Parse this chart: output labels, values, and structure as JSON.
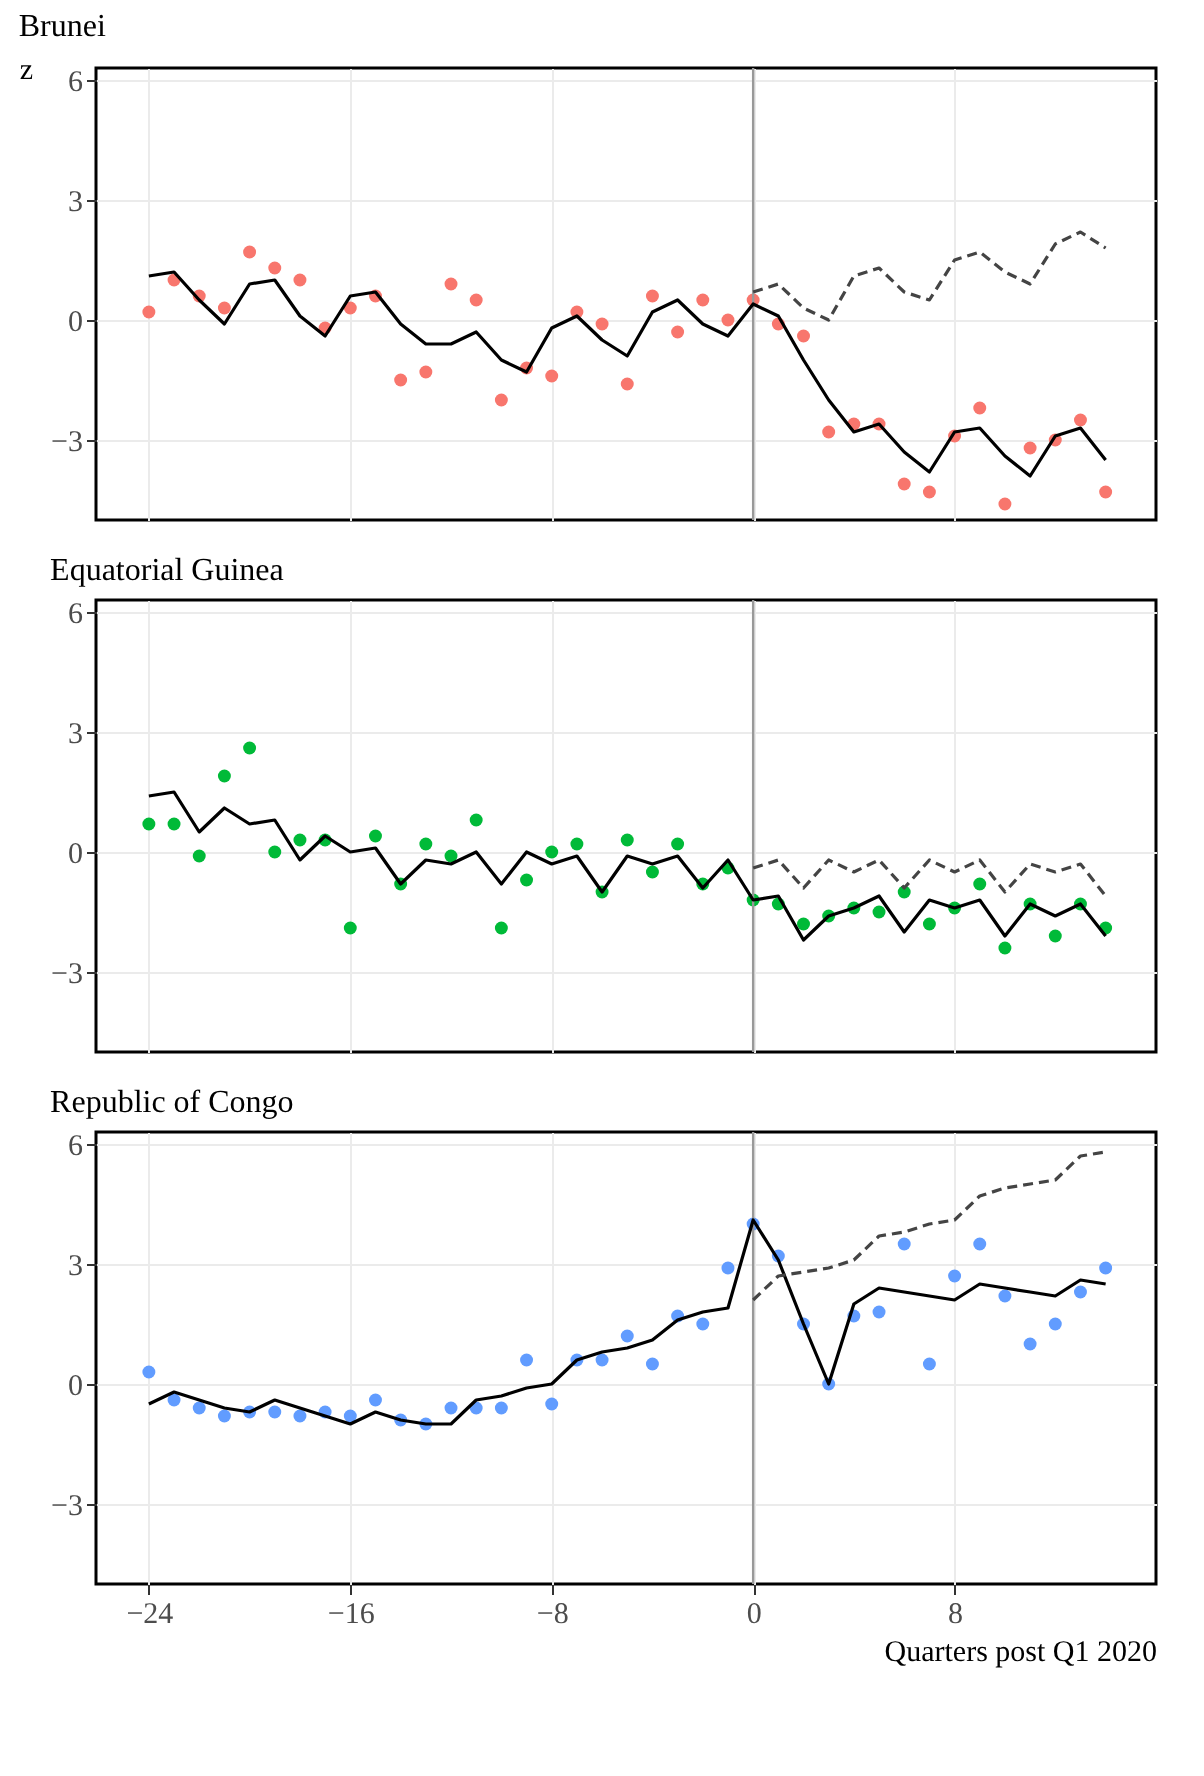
{
  "chart_data": [
    {
      "type": "scatter",
      "title": "Brunei",
      "ylabel": "z",
      "tick_labels": "y",
      "grid": true,
      "x": [
        -24,
        -23,
        -22,
        -21,
        -20,
        -19,
        -18,
        -17,
        -16,
        -15,
        -14,
        -13,
        -12,
        -11,
        -10,
        -9,
        -8,
        -7,
        -6,
        -5,
        -4,
        -3,
        -2,
        -1,
        0,
        1,
        2,
        3,
        4,
        5,
        6,
        7,
        8,
        9,
        10,
        11,
        12,
        13,
        14
      ],
      "xlim": [
        -26.1,
        16.0
      ],
      "xticks": [
        -24,
        -16,
        -8,
        0,
        8
      ],
      "ylim": [
        -5.0,
        6.3
      ],
      "yticks": [
        -3,
        0,
        3,
        6
      ],
      "ref_lines": [
        {
          "axis": "x",
          "value": 0,
          "color": "#999999"
        }
      ],
      "series": [
        {
          "color": "#f8766d",
          "marker": "circle",
          "values": [
            0.2,
            1.0,
            0.6,
            0.3,
            1.7,
            1.3,
            1.0,
            -0.2,
            0.3,
            0.6,
            -1.5,
            -1.3,
            0.9,
            0.5,
            -2.0,
            -1.2,
            -1.4,
            0.2,
            -0.1,
            -1.6,
            0.6,
            -0.3,
            0.5,
            0.0,
            0.5,
            -0.1,
            -0.4,
            -2.8,
            -2.6,
            -2.6,
            -4.1,
            -4.3,
            -2.9,
            -2.2,
            -4.6,
            -3.2,
            -3.0,
            -2.5,
            -4.3
          ]
        },
        {
          "type": "line",
          "color": "#000000",
          "line_style": "solid",
          "values": [
            1.1,
            1.2,
            0.5,
            -0.1,
            0.9,
            1.0,
            0.1,
            -0.4,
            0.6,
            0.7,
            -0.1,
            -0.6,
            -0.6,
            -0.3,
            -1.0,
            -1.3,
            -0.2,
            0.1,
            -0.5,
            -0.9,
            0.2,
            0.5,
            -0.1,
            -0.4,
            0.4,
            0.1,
            -1.0,
            -2.0,
            -2.8,
            -2.6,
            -3.3,
            -3.8,
            -2.8,
            -2.7,
            -3.4,
            -3.9,
            -2.9,
            -2.7,
            -3.5
          ]
        },
        {
          "type": "line",
          "color": "#444444",
          "line_style": "dashed",
          "x": [
            0,
            1,
            2,
            3,
            4,
            5,
            6,
            7,
            8,
            9,
            10,
            11,
            12,
            13,
            14
          ],
          "values": [
            0.7,
            0.9,
            0.3,
            0.0,
            1.1,
            1.3,
            0.7,
            0.5,
            1.5,
            1.7,
            1.2,
            0.9,
            1.9,
            2.2,
            1.8
          ]
        }
      ]
    },
    {
      "type": "scatter",
      "title": "Equatorial Guinea",
      "tick_labels": "y",
      "grid": true,
      "x": [
        -24,
        -23,
        -22,
        -21,
        -20,
        -19,
        -18,
        -17,
        -16,
        -15,
        -14,
        -13,
        -12,
        -11,
        -10,
        -9,
        -8,
        -7,
        -6,
        -5,
        -4,
        -3,
        -2,
        -1,
        0,
        1,
        2,
        3,
        4,
        5,
        6,
        7,
        8,
        9,
        10,
        11,
        12,
        13,
        14
      ],
      "xlim": [
        -26.1,
        16.0
      ],
      "xticks": [
        -24,
        -16,
        -8,
        0,
        8
      ],
      "ylim": [
        -5.0,
        6.3
      ],
      "yticks": [
        -3,
        0,
        3,
        6
      ],
      "ref_lines": [
        {
          "axis": "x",
          "value": 0,
          "color": "#999999"
        }
      ],
      "series": [
        {
          "color": "#00ba38",
          "marker": "circle",
          "values": [
            0.7,
            0.7,
            -0.1,
            1.9,
            2.6,
            0.0,
            0.3,
            0.3,
            -1.9,
            0.4,
            -0.8,
            0.2,
            -0.1,
            0.8,
            -1.9,
            -0.7,
            0.0,
            0.2,
            -1.0,
            0.3,
            -0.5,
            0.2,
            -0.8,
            -0.4,
            -1.2,
            -1.3,
            -1.8,
            -1.6,
            -1.4,
            -1.5,
            -1.0,
            -1.8,
            -1.4,
            -0.8,
            -2.4,
            -1.3,
            -2.1,
            -1.3,
            -1.9
          ]
        },
        {
          "type": "line",
          "color": "#000000",
          "line_style": "solid",
          "values": [
            1.4,
            1.5,
            0.5,
            1.1,
            0.7,
            0.8,
            -0.2,
            0.4,
            0.0,
            0.1,
            -0.8,
            -0.2,
            -0.3,
            0.0,
            -0.8,
            0.0,
            -0.3,
            -0.1,
            -1.0,
            -0.1,
            -0.3,
            -0.1,
            -0.9,
            -0.2,
            -1.2,
            -1.1,
            -2.2,
            -1.6,
            -1.4,
            -1.1,
            -2.0,
            -1.2,
            -1.4,
            -1.2,
            -2.1,
            -1.3,
            -1.6,
            -1.3,
            -2.1
          ]
        },
        {
          "type": "line",
          "color": "#444444",
          "line_style": "dashed",
          "x": [
            0,
            1,
            2,
            3,
            4,
            5,
            6,
            7,
            8,
            9,
            10,
            11,
            12,
            13,
            14
          ],
          "values": [
            -0.4,
            -0.2,
            -0.9,
            -0.2,
            -0.5,
            -0.2,
            -0.9,
            -0.2,
            -0.5,
            -0.2,
            -1.0,
            -0.3,
            -0.5,
            -0.3,
            -1.1
          ]
        }
      ]
    },
    {
      "type": "scatter",
      "title": "Republic of Congo",
      "xlabel": "Quarters post Q1 2020",
      "grid": true,
      "x": [
        -24,
        -23,
        -22,
        -21,
        -20,
        -19,
        -18,
        -17,
        -16,
        -15,
        -14,
        -13,
        -12,
        -11,
        -10,
        -9,
        -8,
        -7,
        -6,
        -5,
        -4,
        -3,
        -2,
        -1,
        0,
        1,
        2,
        3,
        4,
        5,
        6,
        7,
        8,
        9,
        10,
        11,
        12,
        13,
        14
      ],
      "xlim": [
        -26.1,
        16.0
      ],
      "xticks": [
        -24,
        -16,
        -8,
        0,
        8
      ],
      "ylim": [
        -5.0,
        6.3
      ],
      "yticks": [
        -3,
        0,
        3,
        6
      ],
      "ref_lines": [
        {
          "axis": "x",
          "value": 0,
          "color": "#999999"
        }
      ],
      "series": [
        {
          "color": "#619cff",
          "marker": "circle",
          "values": [
            0.3,
            -0.4,
            -0.6,
            -0.8,
            -0.7,
            -0.7,
            -0.8,
            -0.7,
            -0.8,
            -0.4,
            -0.9,
            -1.0,
            -0.6,
            -0.6,
            -0.6,
            0.6,
            -0.5,
            0.6,
            0.6,
            1.2,
            0.5,
            1.7,
            1.5,
            2.9,
            4.0,
            3.2,
            1.5,
            0.0,
            1.7,
            1.8,
            3.5,
            0.5,
            2.7,
            3.5,
            2.2,
            1.0,
            1.5,
            2.3,
            2.9
          ]
        },
        {
          "type": "line",
          "color": "#000000",
          "line_style": "solid",
          "values": [
            -0.5,
            -0.2,
            -0.4,
            -0.6,
            -0.7,
            -0.4,
            -0.6,
            -0.8,
            -1.0,
            -0.7,
            -0.9,
            -1.0,
            -1.0,
            -0.4,
            -0.3,
            -0.1,
            0.0,
            0.6,
            0.8,
            0.9,
            1.1,
            1.6,
            1.8,
            1.9,
            4.1,
            3.1,
            1.5,
            0.0,
            2.0,
            2.4,
            2.3,
            2.2,
            2.1,
            2.5,
            2.4,
            2.3,
            2.2,
            2.6,
            2.5
          ]
        },
        {
          "type": "line",
          "color": "#444444",
          "line_style": "dashed",
          "x": [
            0,
            1,
            2,
            3,
            4,
            5,
            6,
            7,
            8,
            9,
            10,
            11,
            12,
            13,
            14
          ],
          "values": [
            2.1,
            2.7,
            2.8,
            2.9,
            3.1,
            3.7,
            3.8,
            4.0,
            4.1,
            4.7,
            4.9,
            5.0,
            5.1,
            5.7,
            5.8
          ]
        }
      ]
    }
  ]
}
